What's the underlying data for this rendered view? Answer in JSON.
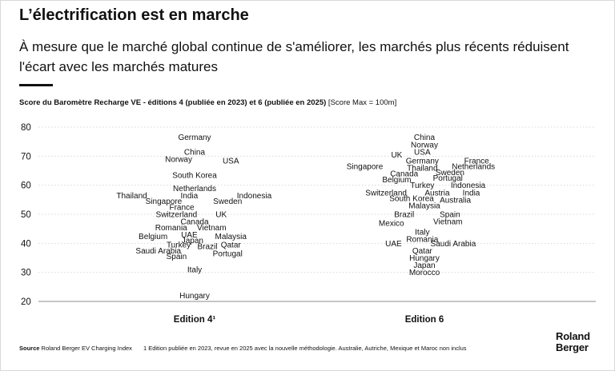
{
  "header": {
    "title": "L’électrification est en marche",
    "subtitle": "À mesure que le marché global continue de s'améliorer, les marchés plus récents réduisent l'écart avec les marchés matures"
  },
  "chart_header": {
    "bold_text": "Score du Baromètre Recharge VE - éditions 4 (publiée en 2023) et 6 (publiée en 2025)",
    "normal_text": " [Score Max = 100m]"
  },
  "footer": {
    "source_label": "Source",
    "source_text": " Roland Berger EV Charging Index",
    "note": "1 Edition publiée en 2023, revue en 2025 avec la nouvelle méthodologie. Australie, Autriche, Mexique et Maroc non inclus"
  },
  "logo": {
    "line1": "Roland",
    "line2": "Berger"
  },
  "colors": {
    "text": "#111111",
    "grid": "#d9d9d9",
    "axis": "#8c8c8c"
  },
  "chart_data": {
    "type": "scatter",
    "title": "Score du Baromètre Recharge VE - éditions 4 (publiée en 2023) et 6 (publiée en 2025)",
    "ylim": [
      20,
      80
    ],
    "yticks": [
      20,
      30,
      40,
      50,
      60,
      70,
      80
    ],
    "grid": true,
    "categories": [
      "Edition 4¹",
      "Edition 6"
    ],
    "series": [
      {
        "name": "Edition 4¹",
        "points": [
          {
            "label": "Germany",
            "x": 0.0,
            "y": 76.5
          },
          {
            "label": "China",
            "x": 0.0,
            "y": 71.5
          },
          {
            "label": "Norway",
            "x": -0.15,
            "y": 69.0
          },
          {
            "label": "USA",
            "x": 0.34,
            "y": 68.5
          },
          {
            "label": "South Korea",
            "x": 0.0,
            "y": 63.5
          },
          {
            "label": "Netherlands",
            "x": 0.0,
            "y": 59.0
          },
          {
            "label": "Thailand",
            "x": -0.59,
            "y": 56.5
          },
          {
            "label": "India",
            "x": -0.05,
            "y": 56.5
          },
          {
            "label": "Indonesia",
            "x": 0.56,
            "y": 56.5
          },
          {
            "label": "Singapore",
            "x": -0.29,
            "y": 54.5
          },
          {
            "label": "Sweden",
            "x": 0.31,
            "y": 54.5
          },
          {
            "label": "France",
            "x": -0.12,
            "y": 52.5
          },
          {
            "label": "Switzerland",
            "x": -0.17,
            "y": 50.0
          },
          {
            "label": "UK",
            "x": 0.25,
            "y": 50.0
          },
          {
            "label": "Canada",
            "x": 0.0,
            "y": 47.5
          },
          {
            "label": "Romania",
            "x": -0.22,
            "y": 45.5
          },
          {
            "label": "Vietnam",
            "x": 0.16,
            "y": 45.5
          },
          {
            "label": "UAE",
            "x": -0.05,
            "y": 43.0
          },
          {
            "label": "Belgium",
            "x": -0.39,
            "y": 42.5
          },
          {
            "label": "Malaysia",
            "x": 0.34,
            "y": 42.5
          },
          {
            "label": "Japan",
            "x": -0.02,
            "y": 41.0
          },
          {
            "label": "Turkey",
            "x": -0.15,
            "y": 39.5
          },
          {
            "label": "Brazil",
            "x": 0.12,
            "y": 39.0
          },
          {
            "label": "Qatar",
            "x": 0.34,
            "y": 39.5
          },
          {
            "label": "Saudi Arabia",
            "x": -0.34,
            "y": 37.5
          },
          {
            "label": "Portugal",
            "x": 0.31,
            "y": 36.5
          },
          {
            "label": "Spain",
            "x": -0.17,
            "y": 35.5
          },
          {
            "label": "Italy",
            "x": 0.0,
            "y": 31.0
          },
          {
            "label": "Hungary",
            "x": 0.0,
            "y": 22.0
          }
        ]
      },
      {
        "name": "Edition 6",
        "points": [
          {
            "label": "China",
            "x": 0.0,
            "y": 76.5
          },
          {
            "label": "Norway",
            "x": 0.0,
            "y": 74.0
          },
          {
            "label": "USA",
            "x": -0.02,
            "y": 71.5
          },
          {
            "label": "UK",
            "x": -0.26,
            "y": 70.5
          },
          {
            "label": "Germany",
            "x": -0.02,
            "y": 68.5
          },
          {
            "label": "France",
            "x": 0.49,
            "y": 68.5
          },
          {
            "label": "Singapore",
            "x": -0.56,
            "y": 66.5
          },
          {
            "label": "Thailand",
            "x": -0.02,
            "y": 66.0
          },
          {
            "label": "Netherlands",
            "x": 0.46,
            "y": 66.5
          },
          {
            "label": "Sweden",
            "x": 0.24,
            "y": 64.5
          },
          {
            "label": "Canada",
            "x": -0.19,
            "y": 64.0
          },
          {
            "label": "Portugal",
            "x": 0.22,
            "y": 62.5
          },
          {
            "label": "Belgium",
            "x": -0.26,
            "y": 62.0
          },
          {
            "label": "Turkey",
            "x": -0.02,
            "y": 60.0
          },
          {
            "label": "Indonesia",
            "x": 0.41,
            "y": 60.0
          },
          {
            "label": "Switzerland",
            "x": -0.36,
            "y": 57.5
          },
          {
            "label": "Austria",
            "x": 0.12,
            "y": 57.5
          },
          {
            "label": "India",
            "x": 0.44,
            "y": 57.5
          },
          {
            "label": "South Korea",
            "x": -0.12,
            "y": 55.5
          },
          {
            "label": "Australia",
            "x": 0.29,
            "y": 55.0
          },
          {
            "label": "Malaysia",
            "x": 0.0,
            "y": 53.0
          },
          {
            "label": "Brazil",
            "x": -0.19,
            "y": 50.0
          },
          {
            "label": "Spain",
            "x": 0.24,
            "y": 50.0
          },
          {
            "label": "Vietnam",
            "x": 0.22,
            "y": 47.5
          },
          {
            "label": "Mexico",
            "x": -0.31,
            "y": 47.0
          },
          {
            "label": "Italy",
            "x": -0.02,
            "y": 44.0
          },
          {
            "label": "Romania",
            "x": -0.02,
            "y": 41.5
          },
          {
            "label": "UAE",
            "x": -0.29,
            "y": 40.0
          },
          {
            "label": "Saudi Arabia",
            "x": 0.27,
            "y": 40.0
          },
          {
            "label": "Qatar",
            "x": -0.02,
            "y": 37.5
          },
          {
            "label": "Hungary",
            "x": 0.0,
            "y": 35.0
          },
          {
            "label": "Japan",
            "x": 0.0,
            "y": 32.5
          },
          {
            "label": "Morocco",
            "x": 0.0,
            "y": 30.0
          }
        ]
      }
    ]
  }
}
